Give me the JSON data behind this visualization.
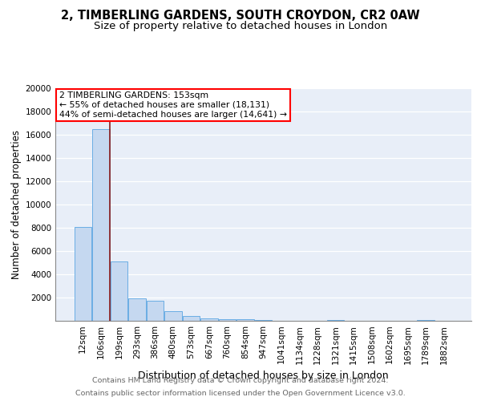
{
  "title1": "2, TIMBERLING GARDENS, SOUTH CROYDON, CR2 0AW",
  "title2": "Size of property relative to detached houses in London",
  "xlabel": "Distribution of detached houses by size in London",
  "ylabel": "Number of detached properties",
  "categories": [
    "12sqm",
    "106sqm",
    "199sqm",
    "293sqm",
    "386sqm",
    "480sqm",
    "573sqm",
    "667sqm",
    "760sqm",
    "854sqm",
    "947sqm",
    "1041sqm",
    "1134sqm",
    "1228sqm",
    "1321sqm",
    "1415sqm",
    "1508sqm",
    "1602sqm",
    "1695sqm",
    "1789sqm",
    "1882sqm"
  ],
  "values": [
    8100,
    16500,
    5100,
    1900,
    1750,
    800,
    380,
    220,
    160,
    120,
    80,
    0,
    0,
    0,
    60,
    0,
    0,
    0,
    0,
    60,
    0
  ],
  "bar_color": "#c5d8f0",
  "bar_edge_color": "#6aade4",
  "vline_color": "#8b1a1a",
  "vline_x": 1.48,
  "annotation_text": "2 TIMBERLING GARDENS: 153sqm\n← 55% of detached houses are smaller (18,131)\n44% of semi-detached houses are larger (14,641) →",
  "annotation_box_facecolor": "white",
  "annotation_box_edgecolor": "red",
  "footer1": "Contains HM Land Registry data © Crown copyright and database right 2024.",
  "footer2": "Contains public sector information licensed under the Open Government Licence v3.0.",
  "ylim": [
    0,
    20000
  ],
  "yticks": [
    0,
    2000,
    4000,
    6000,
    8000,
    10000,
    12000,
    14000,
    16000,
    18000,
    20000
  ],
  "plot_bg_color": "#e8eef8",
  "title_fontsize": 10.5,
  "subtitle_fontsize": 9.5,
  "xlabel_fontsize": 9,
  "ylabel_fontsize": 8.5,
  "tick_fontsize": 7.5,
  "footer_fontsize": 6.8,
  "ann_fontsize": 7.8
}
